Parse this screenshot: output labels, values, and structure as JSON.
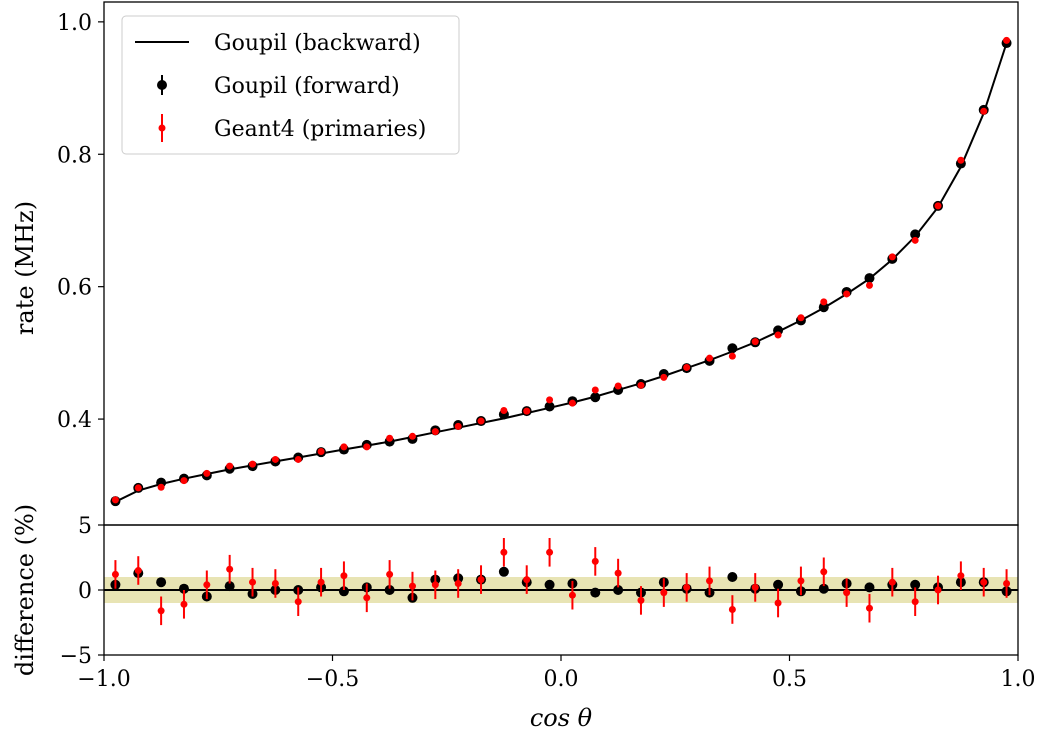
{
  "chart_data": [
    {
      "type": "line",
      "panel": "top",
      "xlabel": "",
      "ylabel": "rate (MHz)",
      "xlim": [
        -1.0,
        1.0
      ],
      "ylim": [
        0.24,
        1.03
      ],
      "yticks": [
        0.4,
        0.6,
        0.8,
        1.0
      ],
      "ytick_labels": [
        "0.4",
        "0.6",
        "0.8",
        "1.0"
      ],
      "legend_position": "upper-left",
      "grid": false,
      "series": [
        {
          "name": "Goupil (backward)",
          "style": "line",
          "color": "#000000",
          "x": [
            -0.975,
            -0.925,
            -0.875,
            -0.825,
            -0.775,
            -0.725,
            -0.675,
            -0.625,
            -0.575,
            -0.525,
            -0.475,
            -0.425,
            -0.375,
            -0.325,
            -0.275,
            -0.225,
            -0.175,
            -0.125,
            -0.075,
            -0.025,
            0.025,
            0.075,
            0.125,
            0.175,
            0.225,
            0.275,
            0.325,
            0.375,
            0.425,
            0.475,
            0.525,
            0.575,
            0.625,
            0.675,
            0.725,
            0.775,
            0.825,
            0.875,
            0.925,
            0.975
          ],
          "y": [
            0.275,
            0.292,
            0.302,
            0.31,
            0.317,
            0.324,
            0.33,
            0.336,
            0.342,
            0.348,
            0.354,
            0.36,
            0.366,
            0.373,
            0.38,
            0.387,
            0.394,
            0.401,
            0.409,
            0.417,
            0.425,
            0.434,
            0.444,
            0.454,
            0.465,
            0.477,
            0.489,
            0.502,
            0.516,
            0.532,
            0.549,
            0.568,
            0.589,
            0.612,
            0.641,
            0.676,
            0.72,
            0.781,
            0.862,
            0.968
          ]
        },
        {
          "name": "Goupil (forward)",
          "style": "errorbar",
          "color": "#000000",
          "x": [
            -0.975,
            -0.925,
            -0.875,
            -0.825,
            -0.775,
            -0.725,
            -0.675,
            -0.625,
            -0.575,
            -0.525,
            -0.475,
            -0.425,
            -0.375,
            -0.325,
            -0.275,
            -0.225,
            -0.175,
            -0.125,
            -0.075,
            -0.025,
            0.025,
            0.075,
            0.125,
            0.175,
            0.225,
            0.275,
            0.325,
            0.375,
            0.425,
            0.475,
            0.525,
            0.575,
            0.625,
            0.675,
            0.725,
            0.775,
            0.825,
            0.875,
            0.925,
            0.975
          ],
          "y": [
            0.276,
            0.296,
            0.304,
            0.31,
            0.315,
            0.325,
            0.329,
            0.336,
            0.342,
            0.35,
            0.354,
            0.361,
            0.366,
            0.37,
            0.383,
            0.391,
            0.397,
            0.407,
            0.412,
            0.419,
            0.427,
            0.433,
            0.444,
            0.453,
            0.468,
            0.477,
            0.488,
            0.507,
            0.516,
            0.534,
            0.549,
            0.569,
            0.592,
            0.613,
            0.642,
            0.679,
            0.722,
            0.786,
            0.867,
            0.968
          ],
          "yerr": [
            0.0008,
            0.0008,
            0.0008,
            0.0008,
            0.0008,
            0.0008,
            0.0008,
            0.0008,
            0.0008,
            0.0008,
            0.0008,
            0.0008,
            0.0008,
            0.0008,
            0.0008,
            0.0008,
            0.0008,
            0.0008,
            0.0008,
            0.0008,
            0.0008,
            0.0008,
            0.0008,
            0.0008,
            0.0008,
            0.0008,
            0.0008,
            0.0008,
            0.0008,
            0.0008,
            0.0008,
            0.0008,
            0.0008,
            0.0008,
            0.0008,
            0.0008,
            0.0008,
            0.0008,
            0.0008,
            0.0008
          ]
        },
        {
          "name": "Geant4 (primaries)",
          "style": "errorbar",
          "color": "#ff0000",
          "x": [
            -0.975,
            -0.925,
            -0.875,
            -0.825,
            -0.775,
            -0.725,
            -0.675,
            -0.625,
            -0.575,
            -0.525,
            -0.475,
            -0.425,
            -0.375,
            -0.325,
            -0.275,
            -0.225,
            -0.175,
            -0.125,
            -0.075,
            -0.025,
            0.025,
            0.075,
            0.125,
            0.175,
            0.225,
            0.275,
            0.325,
            0.375,
            0.425,
            0.475,
            0.525,
            0.575,
            0.625,
            0.675,
            0.725,
            0.775,
            0.825,
            0.875,
            0.925,
            0.975
          ],
          "y": [
            0.278,
            0.296,
            0.297,
            0.307,
            0.318,
            0.329,
            0.332,
            0.339,
            0.339,
            0.351,
            0.358,
            0.358,
            0.371,
            0.374,
            0.381,
            0.389,
            0.397,
            0.413,
            0.412,
            0.429,
            0.424,
            0.444,
            0.45,
            0.451,
            0.463,
            0.478,
            0.492,
            0.495,
            0.517,
            0.527,
            0.553,
            0.577,
            0.589,
            0.602,
            0.645,
            0.67,
            0.722,
            0.791,
            0.865,
            0.972
          ],
          "yerr": [
            0.0035,
            0.0035,
            0.0035,
            0.0035,
            0.0035,
            0.0035,
            0.0035,
            0.0035,
            0.0035,
            0.0035,
            0.0035,
            0.0035,
            0.0035,
            0.0035,
            0.0035,
            0.0035,
            0.0035,
            0.0035,
            0.0035,
            0.0035,
            0.0035,
            0.0035,
            0.0035,
            0.0035,
            0.0035,
            0.0035,
            0.0035,
            0.0035,
            0.0035,
            0.0035,
            0.0035,
            0.0035,
            0.0035,
            0.0035,
            0.0035,
            0.0035,
            0.0035,
            0.0035,
            0.0035,
            0.0035
          ]
        }
      ]
    },
    {
      "type": "scatter",
      "panel": "bottom",
      "xlabel": "cos θ",
      "ylabel": "difference (%)",
      "xlim": [
        -1.0,
        1.0
      ],
      "ylim": [
        -5,
        5
      ],
      "xticks": [
        -1.0,
        -0.5,
        0.0,
        0.5,
        1.0
      ],
      "xtick_labels": [
        "−1.0",
        "−0.5",
        "0.0",
        "0.5",
        "1.0"
      ],
      "yticks": [
        -5,
        0,
        5
      ],
      "ytick_labels": [
        "−5",
        "0",
        "5"
      ],
      "band": {
        "y_low": -1,
        "y_high": 1,
        "color": "#e8e4b4"
      },
      "reference_line": {
        "y": 0,
        "color": "#000000"
      },
      "grid": false,
      "series": [
        {
          "name": "Goupil (forward)",
          "color": "#000000",
          "x": [
            -0.975,
            -0.925,
            -0.875,
            -0.825,
            -0.775,
            -0.725,
            -0.675,
            -0.625,
            -0.575,
            -0.525,
            -0.475,
            -0.425,
            -0.375,
            -0.325,
            -0.275,
            -0.225,
            -0.175,
            -0.125,
            -0.075,
            -0.025,
            0.025,
            0.075,
            0.125,
            0.175,
            0.225,
            0.275,
            0.325,
            0.375,
            0.425,
            0.475,
            0.525,
            0.575,
            0.625,
            0.675,
            0.725,
            0.775,
            0.825,
            0.875,
            0.925,
            0.975
          ],
          "y": [
            0.4,
            1.3,
            0.6,
            0.1,
            -0.5,
            0.3,
            -0.3,
            0.0,
            0.0,
            0.2,
            -0.1,
            0.2,
            0.0,
            -0.6,
            0.8,
            0.9,
            0.8,
            1.4,
            0.6,
            0.4,
            0.5,
            -0.2,
            0.0,
            -0.2,
            0.6,
            0.1,
            -0.2,
            1.0,
            0.1,
            0.4,
            -0.1,
            0.1,
            0.5,
            0.2,
            0.4,
            0.4,
            0.2,
            0.6,
            0.6,
            -0.1
          ],
          "yerr": [
            0.25,
            0.25,
            0.25,
            0.25,
            0.25,
            0.25,
            0.25,
            0.25,
            0.25,
            0.25,
            0.25,
            0.25,
            0.25,
            0.25,
            0.25,
            0.25,
            0.25,
            0.25,
            0.25,
            0.25,
            0.25,
            0.25,
            0.25,
            0.25,
            0.25,
            0.25,
            0.25,
            0.25,
            0.25,
            0.25,
            0.25,
            0.25,
            0.25,
            0.25,
            0.25,
            0.25,
            0.25,
            0.25,
            0.25,
            0.25
          ]
        },
        {
          "name": "Geant4 (primaries)",
          "color": "#ff0000",
          "x": [
            -0.975,
            -0.925,
            -0.875,
            -0.825,
            -0.775,
            -0.725,
            -0.675,
            -0.625,
            -0.575,
            -0.525,
            -0.475,
            -0.425,
            -0.375,
            -0.325,
            -0.275,
            -0.225,
            -0.175,
            -0.125,
            -0.075,
            -0.025,
            0.025,
            0.075,
            0.125,
            0.175,
            0.225,
            0.275,
            0.325,
            0.375,
            0.425,
            0.475,
            0.525,
            0.575,
            0.625,
            0.675,
            0.725,
            0.775,
            0.825,
            0.875,
            0.925,
            0.975
          ],
          "y": [
            1.2,
            1.5,
            -1.6,
            -1.1,
            0.4,
            1.6,
            0.6,
            0.5,
            -0.9,
            0.6,
            1.1,
            -0.6,
            1.2,
            0.3,
            0.4,
            0.5,
            0.8,
            2.9,
            0.8,
            2.9,
            -0.4,
            2.2,
            1.3,
            -0.8,
            -0.2,
            0.2,
            0.7,
            -1.5,
            0.2,
            -1.0,
            0.7,
            1.4,
            -0.2,
            -1.4,
            0.6,
            -0.9,
            0.0,
            1.1,
            0.6,
            0.5
          ],
          "yerr": [
            1.1,
            1.1,
            1.1,
            1.1,
            1.1,
            1.1,
            1.1,
            1.1,
            1.1,
            1.1,
            1.1,
            1.1,
            1.1,
            1.1,
            1.1,
            1.1,
            1.1,
            1.1,
            1.1,
            1.1,
            1.1,
            1.1,
            1.1,
            1.1,
            1.1,
            1.1,
            1.1,
            1.1,
            1.1,
            1.1,
            1.1,
            1.1,
            1.1,
            1.1,
            1.1,
            1.1,
            1.1,
            1.1,
            1.1,
            1.1
          ]
        }
      ]
    }
  ]
}
